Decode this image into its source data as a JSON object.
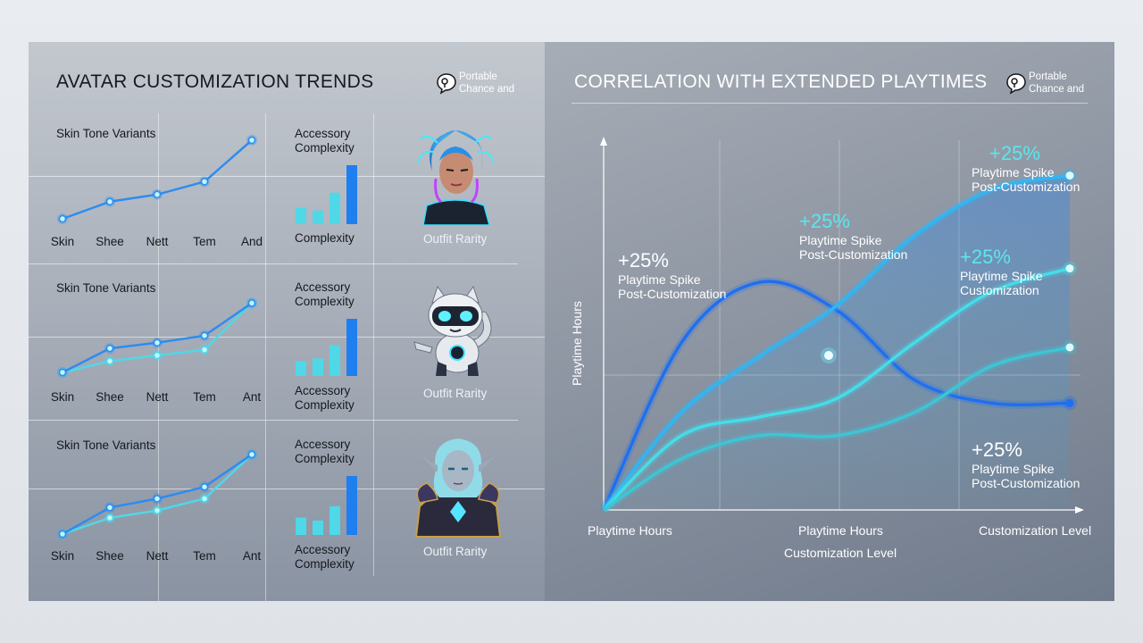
{
  "left": {
    "title": "AVATAR CUSTOMIZATION TRENDS",
    "brand": {
      "line1": "Portable",
      "line2": "Chance and"
    },
    "rows": [
      {
        "line_title": "Skin Tone Variants",
        "bar_title": "Accessory Complexity",
        "bar_bottom": "Complexity",
        "image_label": "Outfit Rarity",
        "image_name": "cyber-avatar-woman"
      },
      {
        "line_title": "Skin Tone Variants",
        "bar_title": "Accessory Complexity",
        "bar_bottom": "Accessory Complexity",
        "image_label": "Outfit Rarity",
        "image_name": "robot-cat-avatar"
      },
      {
        "line_title": "Skin Tone Variants",
        "bar_title": "Accessory Complexity",
        "bar_bottom": "Accessory Complexity",
        "image_label": "Outfit Rarity",
        "image_name": "elf-warrior-avatar"
      }
    ]
  },
  "right": {
    "title": "CORRELATION WITH EXTENDED PLAYTIMES",
    "brand": {
      "line1": "Portable",
      "line2": "Chance and"
    },
    "ylabel": "Playtime Hours",
    "xlabel": "Customization Level",
    "xticks": [
      "Playtime Hours",
      "Playtime Hours",
      "Customization Level"
    ],
    "callouts": [
      {
        "value": "+25%",
        "line1": "Playtime Spike",
        "line2": "Post-Customization",
        "accent": false
      },
      {
        "value": "+25%",
        "line1": "Playtime Spike",
        "line2": "Post-Customization",
        "accent": true
      },
      {
        "value": "+25%",
        "line1": "Playtime Spike",
        "line2": "Post-Customization",
        "accent": true
      },
      {
        "value": "+25%",
        "line1": "Playtime Spike",
        "line2": "Customization",
        "accent": true
      },
      {
        "value": "+25%",
        "line1": "Playtime Spike",
        "line2": "Post-Customization",
        "accent": false
      }
    ]
  },
  "chart_data": [
    {
      "type": "line",
      "title": "Skin Tone Variants",
      "categories": [
        "Skin",
        "Shee",
        "Nett",
        "Tem",
        "And"
      ],
      "series": [
        {
          "values": [
            1,
            2.2,
            2.7,
            3.6,
            6.5
          ]
        }
      ],
      "colors": [
        "#2d8cf0"
      ]
    },
    {
      "type": "bar",
      "title": "Accessory Complexity",
      "values": [
        1.2,
        1,
        2.3,
        4.3
      ],
      "colors": [
        "#4fd8e8",
        "#4fd8e8",
        "#4fd8e8",
        "#1f7ef0"
      ]
    },
    {
      "type": "line",
      "title": "Skin Tone Variants",
      "categories": [
        "Skin",
        "Shee",
        "Nett",
        "Tem",
        "Ant"
      ],
      "series": [
        {
          "values": [
            1,
            2.7,
            3.1,
            3.6,
            5.9
          ]
        },
        {
          "values": [
            1,
            1.8,
            2.2,
            2.6,
            5.9
          ]
        }
      ],
      "colors": [
        "#2d8cf0",
        "#4fd8e8"
      ]
    },
    {
      "type": "bar",
      "title": "Accessory Complexity",
      "values": [
        1,
        1.2,
        2.1,
        3.9
      ],
      "colors": [
        "#4fd8e8",
        "#4fd8e8",
        "#4fd8e8",
        "#1f7ef0"
      ]
    },
    {
      "type": "line",
      "title": "Skin Tone Variants",
      "categories": [
        "Skin",
        "Shee",
        "Nett",
        "Tem",
        "Ant"
      ],
      "series": [
        {
          "values": [
            1,
            2.8,
            3.4,
            4.2,
            6.4
          ]
        },
        {
          "values": [
            1,
            2.1,
            2.6,
            3.4,
            6.4
          ]
        }
      ],
      "colors": [
        "#2d8cf0",
        "#4fd8e8"
      ]
    },
    {
      "type": "bar",
      "title": "Accessory Complexity",
      "values": [
        1.2,
        1,
        2,
        4.1
      ],
      "colors": [
        "#4fd8e8",
        "#4fd8e8",
        "#4fd8e8",
        "#1f7ef0"
      ]
    },
    {
      "type": "line",
      "title": "CORRELATION WITH EXTENDED PLAYTIMES",
      "xlabel": "Customization Level",
      "ylabel": "Playtime Hours",
      "x": [
        0,
        1,
        2,
        3,
        4,
        5,
        6
      ],
      "series": [
        {
          "values": [
            0,
            3.6,
            4.9,
            4.3,
            2.8,
            2.3,
            2.3
          ]
        },
        {
          "values": [
            0,
            2.1,
            3.3,
            4.4,
            5.9,
            6.9,
            7.2
          ]
        },
        {
          "values": [
            0,
            1.6,
            2,
            2.4,
            3.6,
            4.7,
            5.2
          ]
        },
        {
          "values": [
            0,
            1.1,
            1.6,
            1.6,
            2.1,
            3.1,
            3.5
          ]
        }
      ],
      "colors": [
        "#1f6ff0",
        "#2fb6f5",
        "#44dde8",
        "#3cc6d6"
      ]
    }
  ]
}
